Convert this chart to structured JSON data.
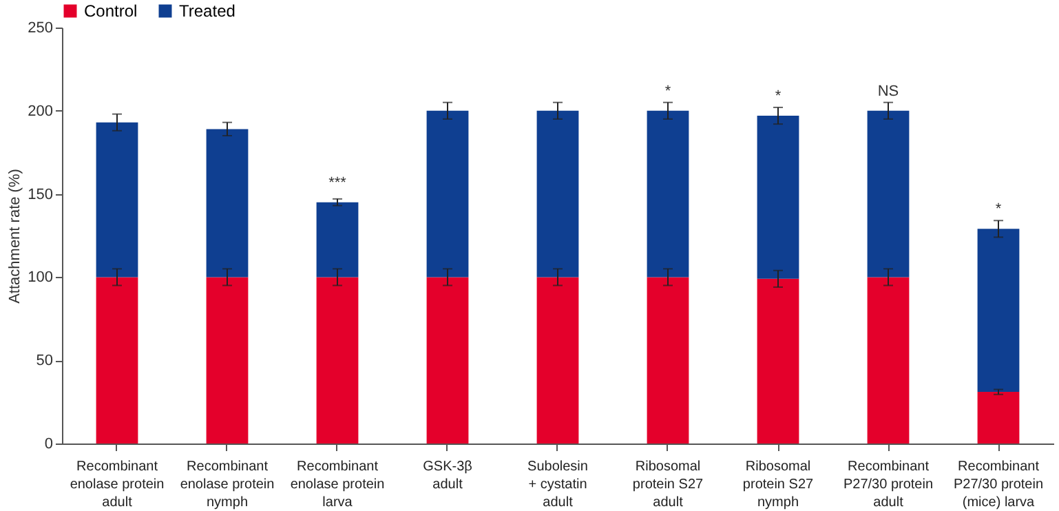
{
  "chart_data": {
    "type": "bar",
    "stacked": true,
    "ylabel": "Attachment rate (%)",
    "ylim": [
      0,
      250
    ],
    "yticks": [
      0,
      50,
      100,
      150,
      200,
      250
    ],
    "grid": false,
    "legend": "top",
    "categories": [
      "Recombinant\nenolase protein\nadult",
      "Recombinant\nenolase protein\nnymph",
      "Recombinant\nenolase protein\nlarva",
      "GSK-3β\nadult",
      "Subolesin\n+ cystatin\nadult",
      "Ribosomal\nprotein S27\nadult",
      "Ribosomal\nprotein S27\nnymph",
      "Recombinant\nP27/30 protein\nadult",
      "Recombinant\nP27/30 protein\n(mice) larva"
    ],
    "series": [
      {
        "name": "Control",
        "color": "#e4002b",
        "values": [
          100,
          100,
          100,
          100,
          100,
          100,
          99,
          100,
          31
        ],
        "errors": [
          5,
          5,
          5,
          5,
          5,
          5,
          5,
          5,
          1.5
        ]
      },
      {
        "name": "Treated",
        "color": "#0f3f91",
        "values": [
          93,
          89,
          45,
          100,
          100,
          100,
          98,
          100,
          98
        ],
        "errors": [
          5,
          4,
          2,
          5,
          5,
          5,
          5,
          5,
          5
        ]
      }
    ],
    "annotations": [
      {
        "text": "***",
        "x": "Recombinant\nenolase protein\nlarva",
        "y": 145
      },
      {
        "text": "*",
        "x": "Ribosomal\nprotein S27\nadult",
        "y": 200
      },
      {
        "text": "*",
        "x": "Ribosomal\nprotein S27\nnymph",
        "y": 197
      },
      {
        "text": "NS",
        "x": "Recombinant\nP27/30 protein\nadult",
        "y": 200
      },
      {
        "text": "*",
        "x": "Recombinant\nP27/30 protein\n(mice) larva",
        "y": 129
      }
    ]
  }
}
